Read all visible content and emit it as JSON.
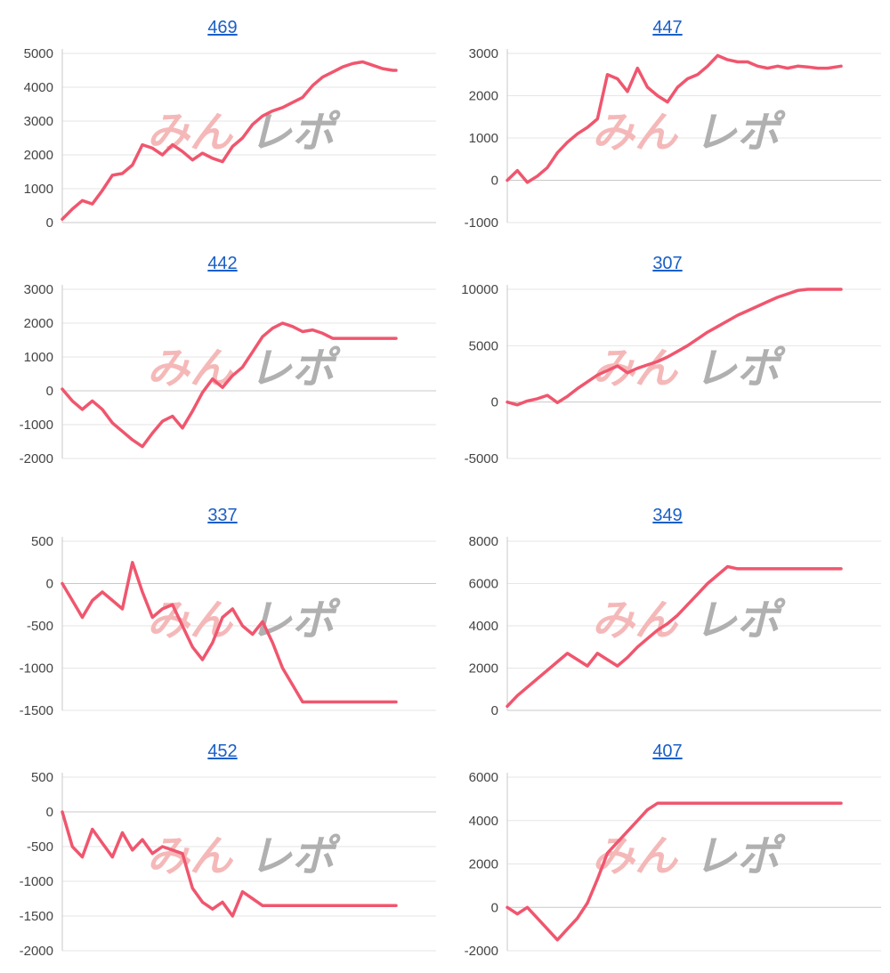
{
  "colors": {
    "line": "#f0566e",
    "grid": "#e6e6e6",
    "axis": "#c8c8c8",
    "title": "#1a5fc7",
    "watermark_pink": "#f4b1b1",
    "watermark_gray": "#a8a8a8"
  },
  "watermark": {
    "text_pink": "みん",
    "text_gray": "レポ"
  },
  "chart_data": [
    {
      "type": "line",
      "title": "469",
      "ylim": [
        0,
        5000
      ],
      "yticks": [
        0,
        1000,
        2000,
        3000,
        4000,
        5000
      ],
      "x": [
        0,
        3,
        6,
        9,
        12,
        15,
        18,
        21,
        24,
        27,
        30,
        33,
        36,
        39,
        42,
        45,
        48,
        51,
        54,
        57,
        60,
        63,
        66,
        69,
        72,
        75,
        78,
        81,
        84,
        87,
        90,
        93,
        96,
        99,
        100
      ],
      "values": [
        100,
        400,
        650,
        550,
        950,
        1400,
        1450,
        1700,
        2300,
        2200,
        2000,
        2300,
        2100,
        1850,
        2050,
        1900,
        1800,
        2250,
        2500,
        2900,
        3150,
        3300,
        3400,
        3550,
        3700,
        4050,
        4300,
        4450,
        4600,
        4700,
        4750,
        4650,
        4550,
        4500,
        4500
      ]
    },
    {
      "type": "line",
      "title": "447",
      "ylim": [
        -1000,
        3000
      ],
      "yticks": [
        -1000,
        0,
        1000,
        2000,
        3000
      ],
      "x": [
        0,
        3,
        6,
        9,
        12,
        15,
        18,
        21,
        24,
        27,
        30,
        33,
        36,
        39,
        42,
        45,
        48,
        51,
        54,
        57,
        60,
        63,
        66,
        69,
        72,
        75,
        78,
        81,
        84,
        87,
        90,
        93,
        96,
        100
      ],
      "values": [
        0,
        230,
        -50,
        100,
        300,
        650,
        900,
        1100,
        1250,
        1450,
        2500,
        2400,
        2100,
        2650,
        2200,
        2000,
        1850,
        2200,
        2400,
        2500,
        2700,
        2950,
        2850,
        2800,
        2800,
        2700,
        2650,
        2700,
        2650,
        2700,
        2680,
        2650,
        2650,
        2700
      ]
    },
    {
      "type": "line",
      "title": "442",
      "ylim": [
        -2000,
        3000
      ],
      "yticks": [
        -2000,
        -1000,
        0,
        1000,
        2000,
        3000
      ],
      "x": [
        0,
        3,
        6,
        9,
        12,
        15,
        18,
        21,
        24,
        27,
        30,
        33,
        36,
        39,
        42,
        45,
        48,
        51,
        54,
        57,
        60,
        63,
        66,
        69,
        72,
        75,
        78,
        81,
        84,
        87,
        90,
        93,
        96,
        100
      ],
      "values": [
        50,
        -300,
        -550,
        -300,
        -550,
        -950,
        -1200,
        -1450,
        -1650,
        -1250,
        -900,
        -750,
        -1100,
        -600,
        -50,
        350,
        100,
        450,
        700,
        1150,
        1600,
        1850,
        2000,
        1900,
        1750,
        1800,
        1700,
        1550,
        1550,
        1550,
        1550,
        1550,
        1550,
        1550
      ]
    },
    {
      "type": "line",
      "title": "307",
      "ylim": [
        -5000,
        10000
      ],
      "yticks": [
        -5000,
        0,
        5000,
        10000
      ],
      "x": [
        0,
        3,
        6,
        9,
        12,
        15,
        18,
        21,
        24,
        27,
        30,
        33,
        36,
        39,
        42,
        45,
        48,
        51,
        54,
        57,
        60,
        63,
        66,
        69,
        72,
        75,
        78,
        81,
        84,
        87,
        90,
        93,
        96,
        100
      ],
      "values": [
        0,
        -250,
        100,
        300,
        600,
        -50,
        500,
        1200,
        1800,
        2400,
        2800,
        3200,
        2600,
        3000,
        3300,
        3600,
        4000,
        4500,
        5000,
        5600,
        6200,
        6700,
        7200,
        7700,
        8100,
        8500,
        8900,
        9300,
        9600,
        9900,
        10000,
        10000,
        10000,
        10000
      ]
    },
    {
      "type": "line",
      "title": "337",
      "ylim": [
        -1500,
        500
      ],
      "yticks": [
        -1500,
        -1000,
        -500,
        0,
        500
      ],
      "x": [
        0,
        3,
        6,
        9,
        12,
        15,
        18,
        21,
        24,
        27,
        30,
        33,
        36,
        39,
        42,
        45,
        48,
        51,
        54,
        57,
        60,
        63,
        66,
        69,
        72,
        75,
        78,
        81,
        84,
        87,
        90,
        93,
        96,
        100
      ],
      "values": [
        0,
        -200,
        -400,
        -200,
        -100,
        -200,
        -300,
        250,
        -100,
        -400,
        -300,
        -250,
        -500,
        -750,
        -900,
        -700,
        -400,
        -300,
        -500,
        -600,
        -450,
        -700,
        -1000,
        -1200,
        -1400,
        -1400,
        -1400,
        -1400,
        -1400,
        -1400,
        -1400,
        -1400,
        -1400,
        -1400
      ]
    },
    {
      "type": "line",
      "title": "349",
      "ylim": [
        0,
        8000
      ],
      "yticks": [
        0,
        2000,
        4000,
        6000,
        8000
      ],
      "x": [
        0,
        3,
        6,
        9,
        12,
        15,
        18,
        21,
        24,
        27,
        30,
        33,
        36,
        39,
        42,
        45,
        48,
        51,
        54,
        57,
        60,
        63,
        66,
        69,
        72,
        75,
        78,
        81,
        84,
        87,
        90,
        93,
        96,
        100
      ],
      "values": [
        200,
        700,
        1100,
        1500,
        1900,
        2300,
        2700,
        2400,
        2100,
        2700,
        2400,
        2100,
        2500,
        3000,
        3400,
        3800,
        4100,
        4500,
        5000,
        5500,
        6000,
        6400,
        6800,
        6700,
        6700,
        6700,
        6700,
        6700,
        6700,
        6700,
        6700,
        6700,
        6700,
        6700
      ]
    },
    {
      "type": "line",
      "title": "452",
      "ylim": [
        -2000,
        500
      ],
      "yticks": [
        -2000,
        -1500,
        -1000,
        -500,
        0,
        500
      ],
      "x": [
        0,
        3,
        6,
        9,
        12,
        15,
        18,
        21,
        24,
        27,
        30,
        33,
        36,
        39,
        42,
        45,
        48,
        51,
        54,
        57,
        60,
        63,
        66,
        69,
        72,
        75,
        78,
        81,
        84,
        87,
        90,
        93,
        96,
        100
      ],
      "values": [
        0,
        -500,
        -650,
        -250,
        -450,
        -650,
        -300,
        -550,
        -400,
        -600,
        -500,
        -550,
        -600,
        -1100,
        -1300,
        -1400,
        -1300,
        -1500,
        -1150,
        -1250,
        -1350,
        -1350,
        -1350,
        -1350,
        -1350,
        -1350,
        -1350,
        -1350,
        -1350,
        -1350,
        -1350,
        -1350,
        -1350,
        -1350
      ]
    },
    {
      "type": "line",
      "title": "407",
      "ylim": [
        -2000,
        6000
      ],
      "yticks": [
        -2000,
        0,
        2000,
        4000,
        6000
      ],
      "x": [
        0,
        3,
        6,
        9,
        12,
        15,
        18,
        21,
        24,
        27,
        30,
        33,
        36,
        39,
        42,
        45,
        48,
        51,
        54,
        57,
        60,
        63,
        66,
        69,
        72,
        75,
        78,
        81,
        84,
        87,
        90,
        93,
        96,
        100
      ],
      "values": [
        0,
        -300,
        0,
        -500,
        -1000,
        -1500,
        -1000,
        -500,
        200,
        1300,
        2500,
        3000,
        3500,
        4000,
        4500,
        4800,
        4800,
        4800,
        4800,
        4800,
        4800,
        4800,
        4800,
        4800,
        4800,
        4800,
        4800,
        4800,
        4800,
        4800,
        4800,
        4800,
        4800,
        4800
      ]
    }
  ]
}
